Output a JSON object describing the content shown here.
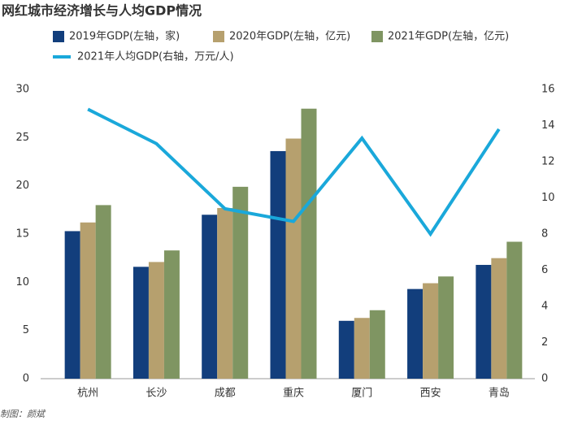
{
  "chart_data": {
    "type": "bar",
    "title": "网红城市经济增长与人均GDP情况",
    "source": "制图：颜斌",
    "categories": [
      "杭州",
      "长沙",
      "成都",
      "重庆",
      "厦门",
      "西安",
      "青岛"
    ],
    "series": [
      {
        "name": "2019年GDP(左轴，家)",
        "color": "#123e7c",
        "values": [
          15.3,
          11.6,
          17.0,
          23.6,
          6.0,
          9.3,
          11.8
        ]
      },
      {
        "name": "2020年GDP(左轴，亿元)",
        "color": "#b6a06e",
        "values": [
          16.2,
          12.1,
          17.7,
          24.9,
          6.3,
          9.9,
          12.5
        ]
      },
      {
        "name": "2021年GDP(左轴，亿元)",
        "color": "#7f9562",
        "values": [
          18.0,
          13.3,
          19.9,
          28.0,
          7.1,
          10.6,
          14.2
        ]
      },
      {
        "name": "2021年人均GDP(右轴，万元/人)",
        "color": "#1aa8da",
        "type": "line",
        "axis": "y2",
        "values": [
          14.9,
          13.0,
          9.4,
          8.7,
          13.3,
          8.0,
          13.8
        ]
      }
    ],
    "ylim": [
      0,
      30
    ],
    "yticks": [
      0,
      5,
      10,
      15,
      20,
      25,
      30
    ],
    "y2lim": [
      0,
      16
    ],
    "y2ticks": [
      0,
      2,
      4,
      6,
      8,
      10,
      12,
      14,
      16
    ],
    "grid": false
  }
}
